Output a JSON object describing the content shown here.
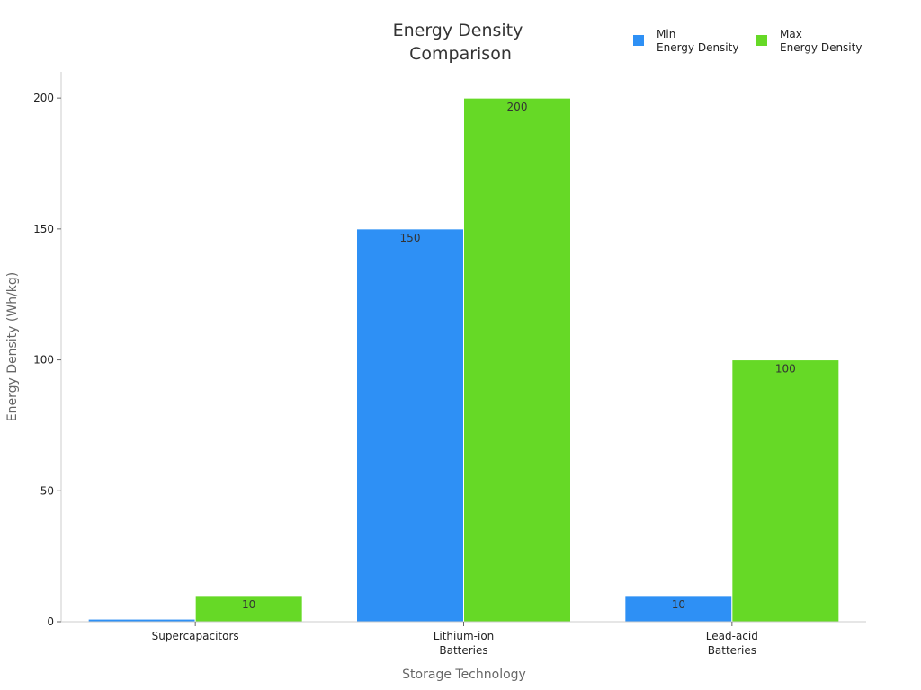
{
  "chart_data": {
    "type": "bar",
    "title": [
      "Energy Density",
      "Comparison"
    ],
    "xlabel": "Storage Technology",
    "ylabel": "Energy Density (Wh/kg)",
    "categories": [
      [
        "Supercapacitors"
      ],
      [
        "Lithium-ion",
        "Batteries"
      ],
      [
        "Lead-acid",
        "Batteries"
      ]
    ],
    "series": [
      {
        "name": [
          "Min",
          "Energy Density"
        ],
        "color": "#2e90f5",
        "values": [
          1,
          150,
          10
        ],
        "labels": [
          "",
          "150",
          "10"
        ]
      },
      {
        "name": [
          "Max",
          "Energy Density"
        ],
        "color": "#66d926",
        "values": [
          10,
          200,
          100
        ],
        "labels": [
          "10",
          "200",
          "100"
        ]
      }
    ],
    "ylim": [
      0,
      210
    ],
    "yticks": [
      0,
      50,
      100,
      150,
      200
    ],
    "grid": false,
    "legend": "top-right"
  }
}
